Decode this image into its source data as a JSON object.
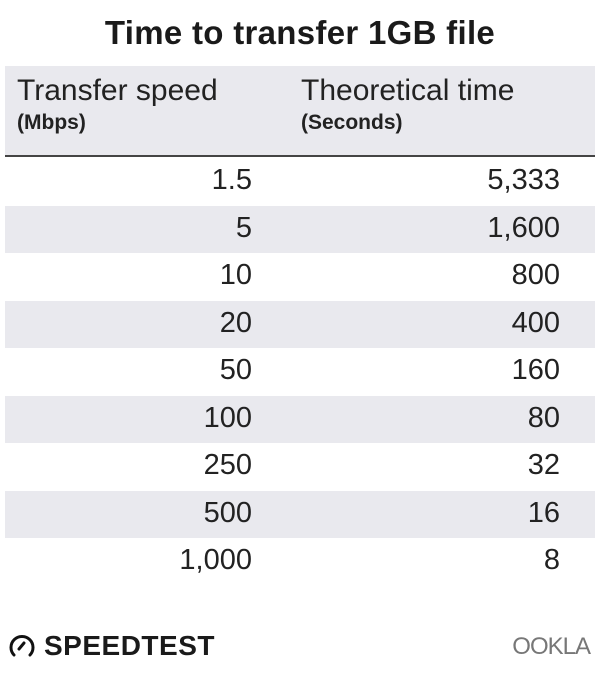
{
  "chart_data": {
    "type": "table",
    "title": "Time to transfer 1GB file",
    "columns": [
      {
        "label": "Transfer speed",
        "unit": "(Mbps)"
      },
      {
        "label": "Theoretical time",
        "unit": "(Seconds)"
      }
    ],
    "rows": [
      [
        "1.5",
        "5,333"
      ],
      [
        "5",
        "1,600"
      ],
      [
        "10",
        "800"
      ],
      [
        "20",
        "400"
      ],
      [
        "50",
        "160"
      ],
      [
        "100",
        "80"
      ],
      [
        "250",
        "32"
      ],
      [
        "500",
        "16"
      ],
      [
        "1,000",
        "8"
      ]
    ]
  },
  "colors": {
    "stripe": "#e9e9ee",
    "text": "#1a1a1a"
  },
  "footer": {
    "left_logo": "SPEEDTEST",
    "right_logo": "OOKLA"
  }
}
